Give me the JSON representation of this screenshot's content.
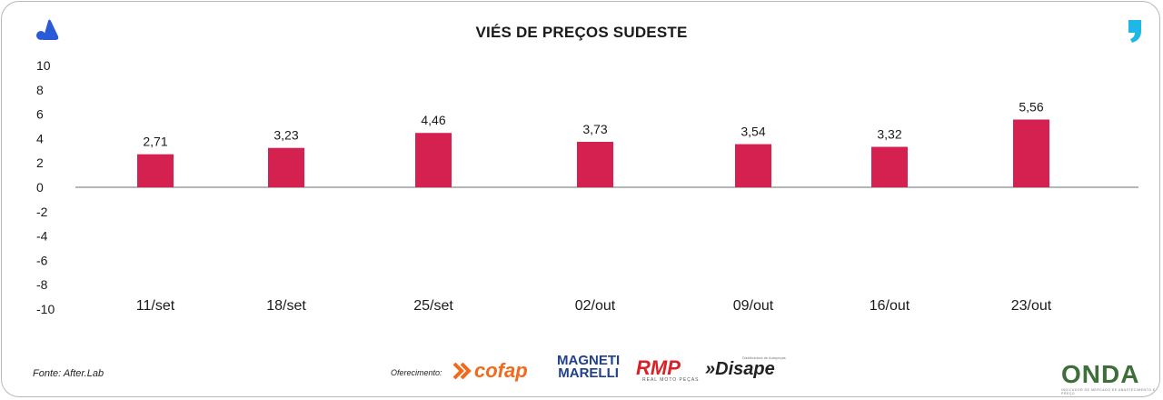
{
  "chart_data": {
    "type": "bar",
    "title": "VIÉS DE PREÇOS SUDESTE",
    "categories": [
      "11/set",
      "18/set",
      "25/set",
      "02/out",
      "09/out",
      "16/out",
      "23/out"
    ],
    "values": [
      2.71,
      3.23,
      4.46,
      3.73,
      3.54,
      3.32,
      5.56
    ],
    "value_labels": [
      "2,71",
      "3,23",
      "4,46",
      "3,73",
      "3,54",
      "3,32",
      "5,56"
    ],
    "ylim": [
      -10,
      10
    ],
    "yticks": [
      "10",
      "8",
      "6",
      "4",
      "2",
      "0",
      "-2",
      "-4",
      "-6",
      "-8",
      "-10"
    ],
    "xlabel": "",
    "ylabel": "",
    "bar_color": "#d42150",
    "grid": false
  },
  "footer": {
    "source": "Fonte: After.Lab",
    "offer_label": "Oferecimento:",
    "sponsors": {
      "cofap": "cofap",
      "magneti_line1": "MAGNETI",
      "magneti_line2": "MARELLI",
      "rmp": "RMP",
      "rmp_sub": "REAL MOTO PEÇAS",
      "disape": "Disape",
      "disape_sub": "Distribuidora de Autopeças"
    },
    "brand": "ONDA",
    "brand_sub": "INDICADOR DE MERCADO DE ABASTECIMENTO E PREÇO"
  },
  "colors": {
    "logo_blue": "#2a5bd7",
    "accent_cyan": "#1fb6e8",
    "axis": "#8a8a8a"
  }
}
